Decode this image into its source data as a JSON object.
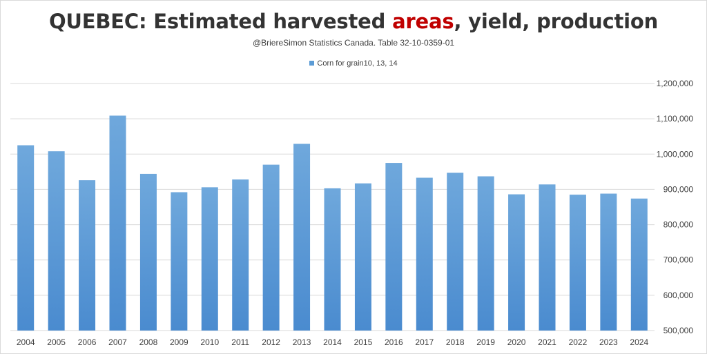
{
  "colors": {
    "bar_top": "#6fa8dc",
    "bar_bottom": "#4a8bcf",
    "grid": "#d9d9d9",
    "title_highlight": "#c00000"
  },
  "header": {
    "title_pre": "QUEBEC: Estimated harvested ",
    "title_highlight": "areas",
    "title_post": ", yield, production",
    "subtitle": "@BriereSimon Statistics Canada. Table 32-10-0359-01"
  },
  "chart_data": {
    "type": "bar",
    "title": "QUEBEC: Estimated harvested areas, yield, production",
    "subtitle": "@BriereSimon Statistics Canada. Table 32-10-0359-01",
    "legend_position": "top-center",
    "grid": true,
    "y_axis_side": "right",
    "categories": [
      "2004",
      "2005",
      "2006",
      "2007",
      "2008",
      "2009",
      "2010",
      "2011",
      "2012",
      "2013",
      "2014",
      "2015",
      "2016",
      "2017",
      "2018",
      "2019",
      "2020",
      "2021",
      "2022",
      "2023",
      "2024"
    ],
    "series": [
      {
        "name": "Corn for grain10, 13, 14",
        "values": [
          1025000,
          1008000,
          926000,
          1109000,
          944000,
          892000,
          906000,
          928000,
          970000,
          1029000,
          903000,
          917000,
          975000,
          933000,
          947000,
          937000,
          886000,
          914000,
          885000,
          888000,
          874000
        ]
      }
    ],
    "ylim": [
      500000,
      1200000
    ],
    "yticks": [
      500000,
      600000,
      700000,
      800000,
      900000,
      1000000,
      1100000,
      1200000
    ],
    "ytick_labels": [
      "500,000",
      "600,000",
      "700,000",
      "800,000",
      "900,000",
      "1,000,000",
      "1,100,000",
      "1,200,000"
    ]
  }
}
